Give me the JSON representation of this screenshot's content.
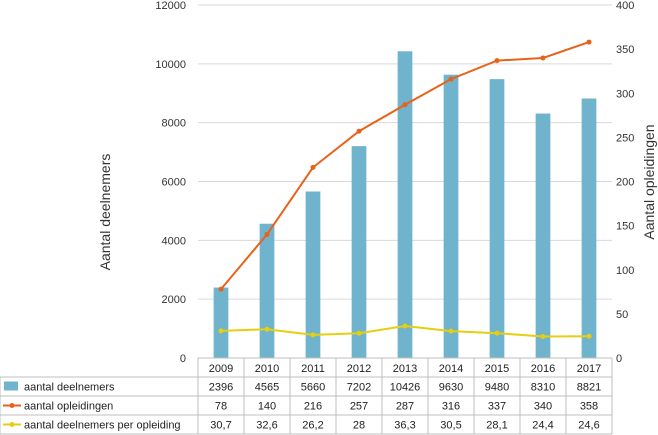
{
  "chart_data": {
    "type": "bar",
    "categories": [
      "2009",
      "2010",
      "2011",
      "2012",
      "2013",
      "2014",
      "2015",
      "2016",
      "2017"
    ],
    "series": [
      {
        "name": "aantal deelnemers",
        "type": "bar",
        "axis": "left",
        "values": [
          2396,
          4565,
          5660,
          7202,
          10426,
          9630,
          9480,
          8310,
          8821
        ],
        "labels": [
          "2396",
          "4565",
          "5660",
          "7202",
          "10426",
          "9630",
          "9480",
          "8310",
          "8821"
        ],
        "color": "#6fb3cc"
      },
      {
        "name": "aantal opleidingen",
        "type": "line",
        "axis": "right",
        "values": [
          78,
          140,
          216,
          257,
          287,
          316,
          337,
          340,
          358
        ],
        "labels": [
          "78",
          "140",
          "216",
          "257",
          "287",
          "316",
          "337",
          "340",
          "358"
        ],
        "color": "#e8621a"
      },
      {
        "name": "aantal deelnemers per opleiding",
        "type": "line",
        "axis": "right",
        "values": [
          30.7,
          32.6,
          26.2,
          28,
          36.3,
          30.5,
          28.1,
          24.4,
          24.6
        ],
        "labels": [
          "30,7",
          "32,6",
          "26,2",
          "28",
          "36,3",
          "30,5",
          "28,1",
          "24,4",
          "24,6"
        ],
        "color": "#e6cf10"
      }
    ],
    "ylabel": "Aantal deelnemers",
    "y2label": "Aantal opleidingen",
    "ylim": [
      0,
      12000
    ],
    "y2lim": [
      0,
      400
    ],
    "yticks": [
      "0",
      "2000",
      "4000",
      "6000",
      "8000",
      "10000",
      "12000"
    ],
    "y2ticks": [
      "0",
      "50",
      "100",
      "150",
      "200",
      "250",
      "300",
      "350",
      "400"
    ],
    "grid": true,
    "legend": "data-table"
  }
}
